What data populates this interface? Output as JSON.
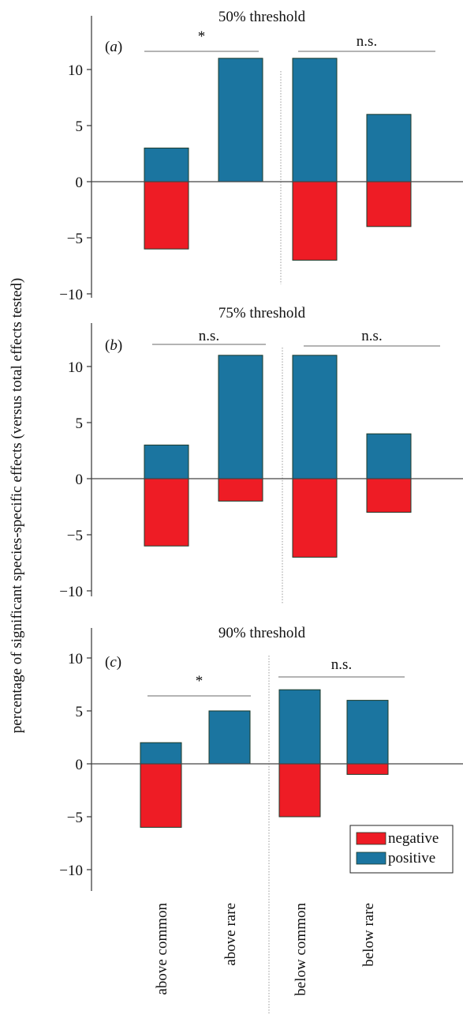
{
  "ylabel": "percentage of significant  species-specific effects (versus total effects tested)",
  "categories": [
    "above common",
    "above rare",
    "below common",
    "below rare"
  ],
  "legend": {
    "position": "bottom-right",
    "items": [
      {
        "label": "negative",
        "color": "#ee1c25"
      },
      {
        "label": "positive",
        "color": "#1b75a0"
      }
    ]
  },
  "colors": {
    "negative": "#ee1c25",
    "positive": "#1b75a0",
    "stroke": "#1d3a2a"
  },
  "chart_data": [
    {
      "type": "bar",
      "title": "50% threshold",
      "panel_label": "(a)",
      "categories": [
        "above common",
        "above rare",
        "below common",
        "below rare"
      ],
      "series": [
        {
          "name": "negative",
          "values": [
            -6,
            0,
            -7,
            -4
          ]
        },
        {
          "name": "positive",
          "values": [
            3,
            11,
            11,
            6
          ]
        }
      ],
      "yticks": [
        10,
        5,
        0,
        -5,
        -10
      ],
      "ylim": [
        -12,
        12
      ],
      "brackets": [
        {
          "label": "*",
          "from": 0,
          "to": 1
        },
        {
          "label": "n.s.",
          "from": 2,
          "to": 3
        }
      ]
    },
    {
      "type": "bar",
      "title": "75% threshold",
      "panel_label": "(b)",
      "categories": [
        "above common",
        "above rare",
        "below common",
        "below rare"
      ],
      "series": [
        {
          "name": "negative",
          "values": [
            -6,
            -2,
            -7,
            -3
          ]
        },
        {
          "name": "positive",
          "values": [
            3,
            11,
            11,
            4
          ]
        }
      ],
      "yticks": [
        10,
        5,
        0,
        -5,
        -10
      ],
      "ylim": [
        -12,
        12
      ],
      "brackets": [
        {
          "label": "n.s.",
          "from": 0,
          "to": 1
        },
        {
          "label": "n.s.",
          "from": 2,
          "to": 3
        }
      ]
    },
    {
      "type": "bar",
      "title": "90% threshold",
      "panel_label": "(c)",
      "categories": [
        "above common",
        "above rare",
        "below common",
        "below rare"
      ],
      "series": [
        {
          "name": "negative",
          "values": [
            -6,
            0,
            -5,
            -1
          ]
        },
        {
          "name": "positive",
          "values": [
            2,
            5,
            7,
            6
          ]
        }
      ],
      "yticks": [
        10,
        5,
        0,
        -5,
        -10
      ],
      "ylim": [
        -12,
        12
      ],
      "brackets": [
        {
          "label": "*",
          "from": 0,
          "to": 1
        },
        {
          "label": "n.s.",
          "from": 2,
          "to": 3
        }
      ]
    }
  ]
}
